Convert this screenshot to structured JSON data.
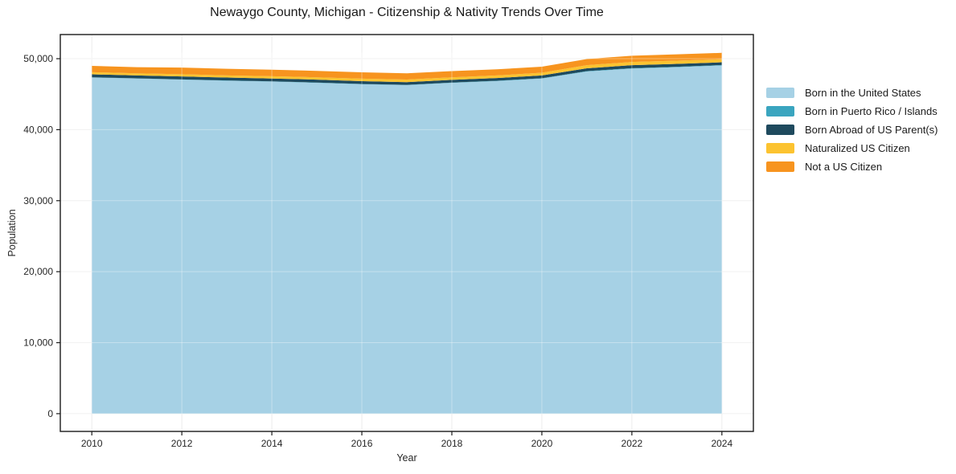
{
  "chart_data": {
    "type": "area",
    "stacked": true,
    "title": "Newaygo County, Michigan - Citizenship & Nativity Trends Over Time",
    "xlabel": "Year",
    "ylabel": "Population",
    "x": [
      2010,
      2011,
      2012,
      2013,
      2014,
      2015,
      2016,
      2017,
      2018,
      2019,
      2020,
      2021,
      2022,
      2023,
      2024
    ],
    "series": [
      {
        "name": "Born in the United States",
        "color": "#a6d1e5",
        "values": [
          47350,
          47200,
          47050,
          46900,
          46780,
          46600,
          46400,
          46280,
          46600,
          46850,
          47200,
          48200,
          48600,
          48800,
          49050
        ]
      },
      {
        "name": "Born in Puerto Rico / Islands",
        "color": "#3aa5bf",
        "values": [
          30,
          30,
          30,
          30,
          30,
          40,
          40,
          40,
          40,
          40,
          50,
          50,
          60,
          60,
          60
        ]
      },
      {
        "name": "Born Abroad of US Parent(s)",
        "color": "#1f4a5e",
        "values": [
          420,
          410,
          420,
          410,
          400,
          410,
          390,
          380,
          380,
          380,
          390,
          400,
          420,
          410,
          380
        ]
      },
      {
        "name": "Naturalized US Citizen",
        "color": "#fcc330",
        "values": [
          300,
          300,
          310,
          310,
          320,
          330,
          360,
          360,
          360,
          370,
          380,
          430,
          460,
          450,
          430
        ]
      },
      {
        "name": "Not a US Citizen",
        "color": "#f7941f",
        "values": [
          880,
          870,
          940,
          930,
          920,
          900,
          890,
          880,
          870,
          860,
          860,
          870,
          880,
          890,
          900
        ]
      }
    ],
    "xlim": [
      2009.3,
      2024.7
    ],
    "ylim": [
      -2500,
      53400
    ],
    "xticks": [
      2010,
      2012,
      2014,
      2016,
      2018,
      2020,
      2022,
      2024
    ],
    "xtick_labels": [
      "2010",
      "2012",
      "2014",
      "2016",
      "2018",
      "2020",
      "2022",
      "2024"
    ],
    "yticks": [
      0,
      10000,
      20000,
      30000,
      40000,
      50000
    ],
    "ytick_labels": [
      "0",
      "10,000",
      "20,000",
      "30,000",
      "40,000",
      "50,000"
    ],
    "grid": true,
    "legend_position": "right"
  },
  "style": {
    "spine_color": "#1a1a1a",
    "tick_label_color": "#262626",
    "grid_color": "#ececec",
    "plot_bg": "#ffffff"
  }
}
